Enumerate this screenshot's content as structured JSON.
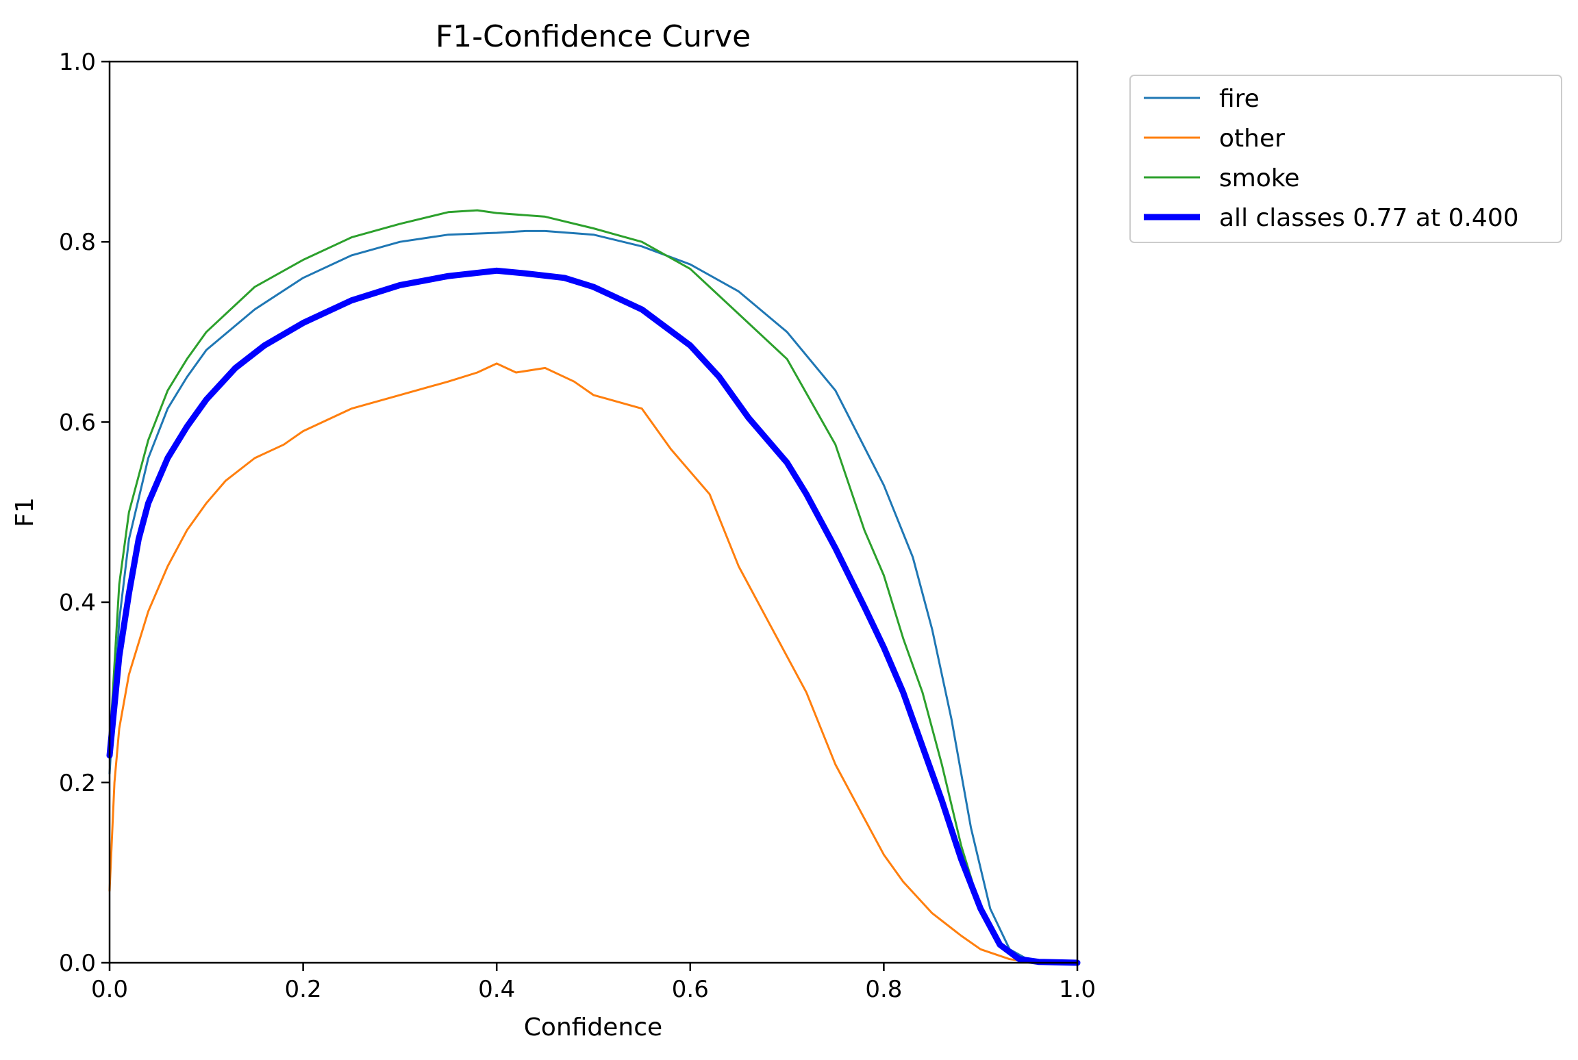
{
  "chart_data": {
    "type": "line",
    "title": "F1-Confidence Curve",
    "xlabel": "Confidence",
    "ylabel": "F1",
    "xlim": [
      0,
      1
    ],
    "ylim": [
      0,
      1
    ],
    "xticks": [
      "0.0",
      "0.2",
      "0.4",
      "0.6",
      "0.8",
      "1.0"
    ],
    "yticks": [
      "0.0",
      "0.2",
      "0.4",
      "0.6",
      "0.8",
      "1.0"
    ],
    "grid": false,
    "legend_position": "outside-top-right",
    "series": [
      {
        "name": "fire",
        "color": "#1f77b4",
        "width": "thin",
        "x": [
          0.0,
          0.01,
          0.02,
          0.04,
          0.06,
          0.08,
          0.1,
          0.15,
          0.2,
          0.25,
          0.3,
          0.35,
          0.4,
          0.43,
          0.45,
          0.5,
          0.55,
          0.6,
          0.65,
          0.7,
          0.75,
          0.8,
          0.83,
          0.85,
          0.87,
          0.89,
          0.91,
          0.93,
          0.95,
          0.97,
          1.0
        ],
        "y": [
          0.21,
          0.38,
          0.47,
          0.56,
          0.615,
          0.65,
          0.68,
          0.725,
          0.76,
          0.785,
          0.8,
          0.808,
          0.81,
          0.812,
          0.812,
          0.808,
          0.795,
          0.775,
          0.745,
          0.7,
          0.635,
          0.53,
          0.45,
          0.37,
          0.27,
          0.15,
          0.06,
          0.015,
          0.003,
          0.001,
          0.001
        ]
      },
      {
        "name": "other",
        "color": "#ff7f0e",
        "width": "thin",
        "x": [
          0.0,
          0.005,
          0.01,
          0.02,
          0.04,
          0.06,
          0.08,
          0.1,
          0.12,
          0.15,
          0.18,
          0.2,
          0.25,
          0.3,
          0.35,
          0.38,
          0.4,
          0.42,
          0.45,
          0.48,
          0.5,
          0.55,
          0.58,
          0.6,
          0.62,
          0.65,
          0.68,
          0.7,
          0.72,
          0.75,
          0.78,
          0.8,
          0.82,
          0.85,
          0.88,
          0.9,
          0.93,
          0.95,
          1.0
        ],
        "y": [
          0.08,
          0.2,
          0.26,
          0.32,
          0.39,
          0.44,
          0.48,
          0.51,
          0.535,
          0.56,
          0.575,
          0.59,
          0.615,
          0.63,
          0.645,
          0.655,
          0.665,
          0.655,
          0.66,
          0.645,
          0.63,
          0.615,
          0.57,
          0.545,
          0.52,
          0.44,
          0.38,
          0.34,
          0.3,
          0.22,
          0.16,
          0.12,
          0.09,
          0.055,
          0.03,
          0.015,
          0.004,
          0.001,
          0.0
        ]
      },
      {
        "name": "smoke",
        "color": "#2ca02c",
        "width": "thin",
        "x": [
          0.0,
          0.01,
          0.02,
          0.04,
          0.06,
          0.08,
          0.1,
          0.15,
          0.2,
          0.25,
          0.3,
          0.35,
          0.38,
          0.4,
          0.45,
          0.5,
          0.55,
          0.6,
          0.65,
          0.7,
          0.75,
          0.78,
          0.8,
          0.82,
          0.84,
          0.86,
          0.88,
          0.9,
          0.92,
          0.94,
          0.96,
          1.0
        ],
        "y": [
          0.24,
          0.42,
          0.5,
          0.58,
          0.635,
          0.67,
          0.7,
          0.75,
          0.78,
          0.805,
          0.82,
          0.833,
          0.835,
          0.832,
          0.828,
          0.815,
          0.8,
          0.77,
          0.72,
          0.67,
          0.575,
          0.48,
          0.43,
          0.36,
          0.3,
          0.22,
          0.13,
          0.06,
          0.02,
          0.005,
          0.001,
          0.0
        ]
      },
      {
        "name": "all classes 0.77 at 0.400",
        "color": "#0000ff",
        "width": "thick",
        "x": [
          0.0,
          0.01,
          0.02,
          0.03,
          0.04,
          0.06,
          0.08,
          0.1,
          0.13,
          0.16,
          0.2,
          0.25,
          0.3,
          0.35,
          0.4,
          0.43,
          0.47,
          0.5,
          0.55,
          0.6,
          0.63,
          0.66,
          0.7,
          0.72,
          0.75,
          0.78,
          0.8,
          0.82,
          0.84,
          0.86,
          0.88,
          0.9,
          0.92,
          0.94,
          0.96,
          1.0
        ],
        "y": [
          0.23,
          0.34,
          0.41,
          0.47,
          0.51,
          0.56,
          0.595,
          0.625,
          0.66,
          0.685,
          0.71,
          0.735,
          0.752,
          0.762,
          0.768,
          0.765,
          0.76,
          0.75,
          0.725,
          0.685,
          0.65,
          0.605,
          0.555,
          0.52,
          0.46,
          0.395,
          0.35,
          0.3,
          0.24,
          0.18,
          0.115,
          0.06,
          0.02,
          0.004,
          0.001,
          0.0
        ]
      }
    ]
  }
}
